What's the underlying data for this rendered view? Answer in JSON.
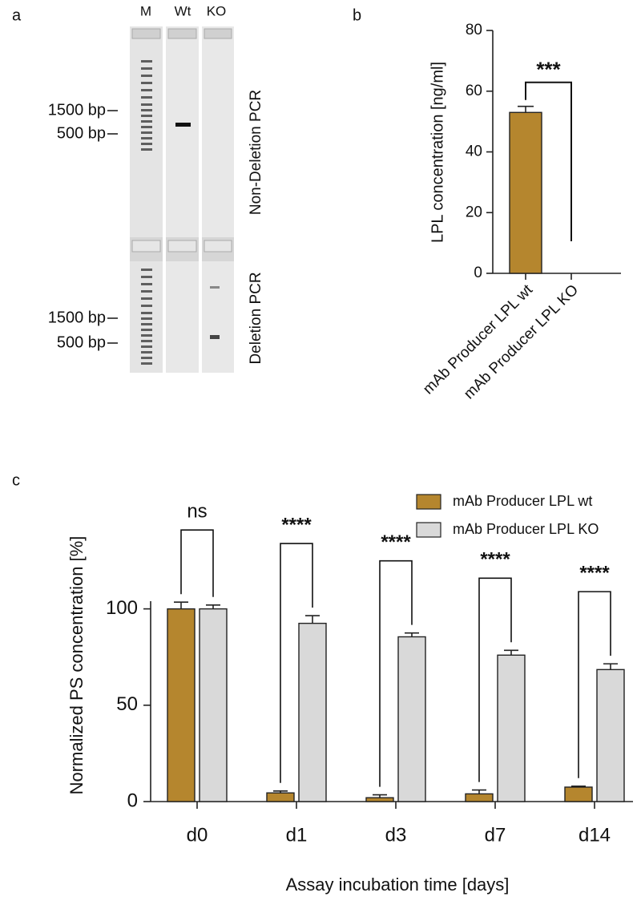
{
  "panel_a": {
    "label": "a",
    "lanes": [
      "M",
      "Wt",
      "KO"
    ],
    "sections": [
      {
        "title": "Non-Deletion PCR",
        "markers": [
          "1500 bp",
          "500 bp"
        ]
      },
      {
        "title": "Deletion PCR",
        "markers": [
          "1500 bp",
          "500 bp"
        ]
      }
    ]
  },
  "chart_data": [
    {
      "type": "bar",
      "panel": "b",
      "ylabel": "LPL concentration [ng/ml]",
      "categories": [
        "mAb Producer LPL wt",
        "mAb Producer LPL KO"
      ],
      "values": [
        53,
        0
      ],
      "errors": [
        2,
        null
      ],
      "color": "#b5862e",
      "ylim": [
        0,
        80
      ],
      "yticks": [
        0,
        20,
        40,
        60,
        80
      ],
      "significance": "***"
    },
    {
      "type": "grouped_bar",
      "panel": "c",
      "ylabel": "Normalized PS concentration [%]",
      "xlabel": "Assay incubation time [days]",
      "categories": [
        "d0",
        "d1",
        "d3",
        "d7",
        "d14"
      ],
      "series": [
        {
          "name": "mAb Producer LPL wt",
          "color": "#b5862e",
          "values": [
            100,
            4.5,
            2,
            4,
            7.5
          ],
          "errors": [
            3.5,
            1,
            1.5,
            2,
            0.5
          ]
        },
        {
          "name": "mAb Producer LPL KO",
          "color": "#d9d9d9",
          "values": [
            100,
            92.5,
            85.5,
            76,
            68.5
          ],
          "errors": [
            2,
            4,
            2,
            2.5,
            3
          ]
        }
      ],
      "ylim": [
        0,
        104
      ],
      "yticks": [
        0,
        50,
        100
      ],
      "legend": "top-right",
      "significance": [
        "ns",
        "****",
        "****",
        "****",
        "****"
      ]
    }
  ]
}
